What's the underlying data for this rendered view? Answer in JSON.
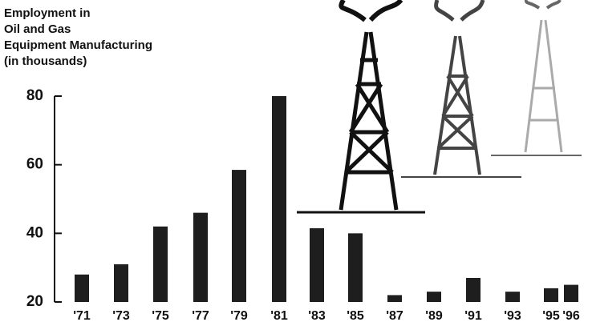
{
  "chart_data": {
    "type": "bar",
    "title": [
      "Employment in",
      "Oil and Gas",
      "Equipment Manufacturing",
      "(in thousands)"
    ],
    "categories": [
      "'71",
      "'73",
      "'75",
      "'77",
      "'79",
      "'81",
      "'83",
      "'85",
      "'87",
      "'89",
      "'91",
      "'93",
      "'95",
      "'96"
    ],
    "values": [
      28,
      31,
      42,
      46,
      58.5,
      80,
      41.5,
      40,
      22,
      23,
      27,
      23,
      24,
      25
    ],
    "color": "#1e1e1e",
    "ylim": [
      20,
      80
    ],
    "yticks": [
      20,
      40,
      60,
      80
    ]
  }
}
